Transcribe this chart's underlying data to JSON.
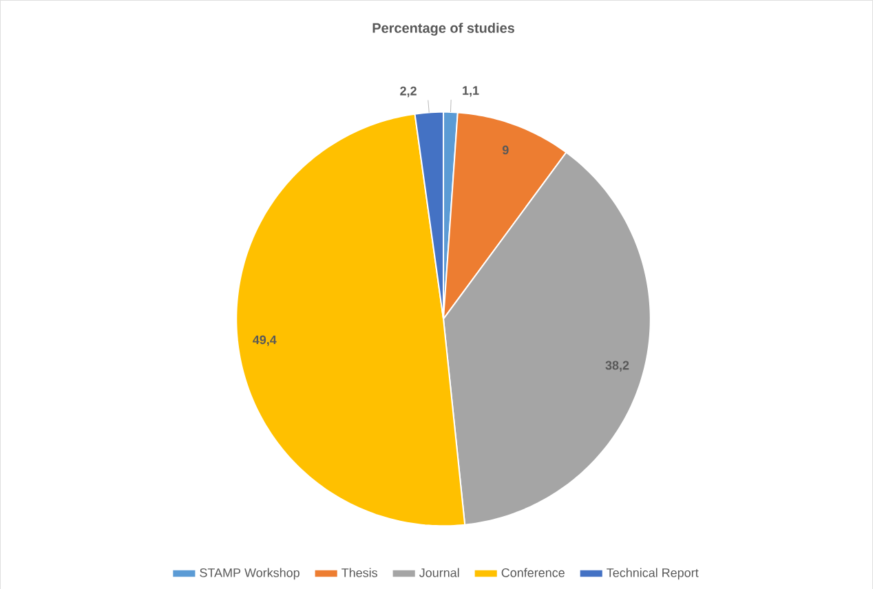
{
  "chart_data": {
    "type": "pie",
    "title": "Percentage of studies",
    "categories": [
      "STAMP Workshop",
      "Thesis",
      "Journal",
      "Conference",
      "Technical Report"
    ],
    "values": [
      1.1,
      9,
      38.2,
      49.4,
      2.2
    ],
    "value_labels": [
      "1,1",
      "9",
      "38,2",
      "49,4",
      "2,2"
    ],
    "colors": [
      "#5b9bd5",
      "#ed7d31",
      "#a5a5a5",
      "#ffc000",
      "#4472c4"
    ],
    "legend": "bottom"
  }
}
